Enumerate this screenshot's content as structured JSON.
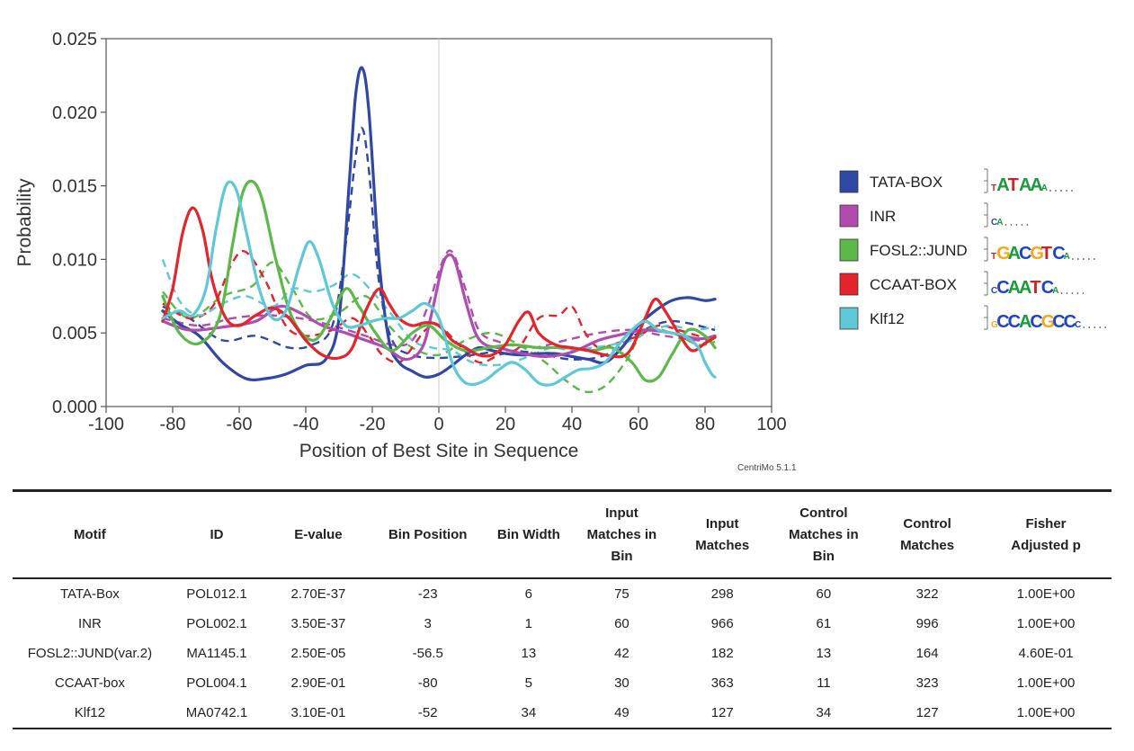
{
  "chart_data": {
    "type": "line",
    "xlabel": "Position of Best Site in Sequence",
    "ylabel": "Probability",
    "xlim": [
      -100,
      100
    ],
    "ylim": [
      0,
      0.025
    ],
    "xticks": [
      "-100",
      "-80",
      "-60",
      "-40",
      "-20",
      "0",
      "20",
      "40",
      "60",
      "80",
      "100"
    ],
    "yticks": [
      "0.000",
      "0.005",
      "0.010",
      "0.015",
      "0.020",
      "0.025"
    ],
    "grid": false,
    "legend": "right",
    "version_label": "CentriMo 5.1.1",
    "series": [
      {
        "name": "TATA-BOX",
        "color": "#2f48a3",
        "logo": "TATAAA",
        "x": [
          -83,
          -78,
          -72,
          -65,
          -58,
          -52,
          -46,
          -40,
          -34,
          -30,
          -27,
          -25,
          -23,
          -21,
          -18,
          -15,
          -12,
          -8,
          -4,
          0,
          4,
          8,
          12,
          16,
          20,
          25,
          30,
          35,
          40,
          45,
          50,
          55,
          60,
          65,
          70,
          75,
          80,
          83
        ],
        "y": [
          0.0065,
          0.0056,
          0.0048,
          0.003,
          0.0019,
          0.0019,
          0.0022,
          0.0028,
          0.0032,
          0.006,
          0.015,
          0.0212,
          0.023,
          0.02,
          0.01,
          0.0045,
          0.003,
          0.0024,
          0.002,
          0.0022,
          0.0028,
          0.0035,
          0.004,
          0.0038,
          0.0036,
          0.0035,
          0.0036,
          0.0036,
          0.0034,
          0.0032,
          0.003,
          0.004,
          0.0055,
          0.0065,
          0.0072,
          0.0074,
          0.0072,
          0.0073
        ]
      },
      {
        "name": "TATA-BOX control",
        "color": "#2f48a3",
        "dashed": true,
        "x": [
          -83,
          -75,
          -65,
          -55,
          -45,
          -38,
          -32,
          -28,
          -25,
          -23,
          -21,
          -18,
          -14,
          -8,
          0,
          10,
          20,
          30,
          40,
          50,
          60,
          70,
          83
        ],
        "y": [
          0.0068,
          0.006,
          0.0045,
          0.0048,
          0.004,
          0.0042,
          0.0055,
          0.011,
          0.017,
          0.0189,
          0.016,
          0.0085,
          0.0045,
          0.0035,
          0.0033,
          0.0035,
          0.0038,
          0.0036,
          0.0032,
          0.0035,
          0.005,
          0.0058,
          0.0052
        ]
      },
      {
        "name": "INR",
        "color": "#b04cb0",
        "logo": "CA",
        "x": [
          -83,
          -75,
          -65,
          -55,
          -48,
          -42,
          -35,
          -28,
          -22,
          -16,
          -10,
          -5,
          -2,
          1,
          3,
          5,
          8,
          11,
          14,
          18,
          25,
          32,
          40,
          48,
          55,
          62,
          70,
          78,
          83
        ],
        "y": [
          0.0058,
          0.0052,
          0.0054,
          0.0058,
          0.0068,
          0.0064,
          0.0055,
          0.005,
          0.0045,
          0.004,
          0.0032,
          0.004,
          0.0065,
          0.0095,
          0.0103,
          0.0098,
          0.0072,
          0.005,
          0.0042,
          0.004,
          0.0036,
          0.0034,
          0.0037,
          0.0045,
          0.0049,
          0.0052,
          0.005,
          0.0046,
          0.0048
        ]
      },
      {
        "name": "INR control",
        "color": "#b04cb0",
        "dashed": true,
        "x": [
          -83,
          -72,
          -62,
          -52,
          -42,
          -32,
          -22,
          -14,
          -8,
          -3,
          1,
          4,
          8,
          12,
          18,
          28,
          38,
          48,
          58,
          68,
          78,
          83
        ],
        "y": [
          0.006,
          0.0055,
          0.006,
          0.0062,
          0.006,
          0.0055,
          0.0048,
          0.0042,
          0.0045,
          0.007,
          0.0098,
          0.0105,
          0.008,
          0.0052,
          0.0044,
          0.004,
          0.0045,
          0.005,
          0.0052,
          0.0048,
          0.0045,
          0.0046
        ]
      },
      {
        "name": "FOSL2::JUND",
        "color": "#5cb848",
        "logo": "TGACGTCA",
        "x": [
          -83,
          -78,
          -72,
          -66,
          -62,
          -59,
          -56,
          -53,
          -49,
          -44,
          -38,
          -33,
          -28,
          -24,
          -19,
          -14,
          -8,
          -3,
          2,
          8,
          15,
          22,
          30,
          38,
          46,
          52,
          58,
          62,
          66,
          70,
          75,
          80,
          83
        ],
        "y": [
          0.0075,
          0.005,
          0.0043,
          0.006,
          0.011,
          0.0145,
          0.0153,
          0.014,
          0.01,
          0.006,
          0.0045,
          0.0058,
          0.008,
          0.0068,
          0.005,
          0.0038,
          0.005,
          0.0055,
          0.0045,
          0.0038,
          0.004,
          0.0042,
          0.004,
          0.004,
          0.0038,
          0.004,
          0.003,
          0.0018,
          0.002,
          0.0035,
          0.0052,
          0.0048,
          0.004
        ]
      },
      {
        "name": "FOSL2::JUND control",
        "color": "#5cb848",
        "dashed": true,
        "x": [
          -83,
          -75,
          -65,
          -56,
          -50,
          -44,
          -38,
          -30,
          -22,
          -15,
          -8,
          0,
          8,
          16,
          24,
          32,
          38,
          44,
          50,
          56,
          62,
          70,
          78,
          83
        ],
        "y": [
          0.0078,
          0.006,
          0.0075,
          0.0082,
          0.0098,
          0.008,
          0.006,
          0.0064,
          0.0075,
          0.0055,
          0.004,
          0.0035,
          0.0045,
          0.005,
          0.0042,
          0.003,
          0.0018,
          0.001,
          0.0014,
          0.003,
          0.0052,
          0.005,
          0.0042,
          0.0044
        ]
      },
      {
        "name": "CCAAT-BOX",
        "color": "#e4232a",
        "logo": "CCAATCA",
        "x": [
          -83,
          -80,
          -77,
          -74,
          -71,
          -68,
          -64,
          -60,
          -55,
          -50,
          -45,
          -40,
          -35,
          -30,
          -26,
          -22,
          -18,
          -15,
          -12,
          -8,
          -4,
          0,
          4,
          8,
          12,
          16,
          20,
          24,
          27,
          30,
          35,
          40,
          45,
          50,
          55,
          58,
          62,
          65,
          68,
          72,
          76,
          80,
          83
        ],
        "y": [
          0.0058,
          0.008,
          0.0118,
          0.0135,
          0.012,
          0.0085,
          0.006,
          0.0055,
          0.0062,
          0.0067,
          0.006,
          0.0045,
          0.0035,
          0.0033,
          0.004,
          0.0065,
          0.008,
          0.007,
          0.006,
          0.0055,
          0.0057,
          0.0055,
          0.0045,
          0.004,
          0.0035,
          0.0035,
          0.0042,
          0.0058,
          0.0064,
          0.005,
          0.0042,
          0.004,
          0.0038,
          0.0035,
          0.0034,
          0.004,
          0.006,
          0.0073,
          0.0065,
          0.005,
          0.0038,
          0.0043,
          0.0047
        ]
      },
      {
        "name": "CCAAT-BOX control",
        "color": "#e4232a",
        "dashed": true,
        "x": [
          -83,
          -75,
          -68,
          -62,
          -58,
          -52,
          -46,
          -40,
          -32,
          -26,
          -21,
          -17,
          -12,
          -8,
          -4,
          0,
          6,
          12,
          18,
          24,
          30,
          36,
          40,
          44,
          48,
          52,
          56,
          60,
          66,
          72,
          78,
          83
        ],
        "y": [
          0.007,
          0.006,
          0.0068,
          0.0098,
          0.0105,
          0.0085,
          0.0055,
          0.0048,
          0.0052,
          0.006,
          0.0048,
          0.0035,
          0.003,
          0.004,
          0.0052,
          0.0055,
          0.0042,
          0.003,
          0.0035,
          0.004,
          0.006,
          0.0062,
          0.0068,
          0.005,
          0.004,
          0.0042,
          0.0045,
          0.0048,
          0.0055,
          0.0052,
          0.0048,
          0.0046
        ]
      },
      {
        "name": "Klf12",
        "color": "#5ec8d8",
        "logo": "GCCACGCCC",
        "x": [
          -83,
          -78,
          -74,
          -70,
          -67,
          -64,
          -61,
          -58,
          -54,
          -50,
          -46,
          -42,
          -39,
          -36,
          -32,
          -28,
          -24,
          -20,
          -16,
          -12,
          -8,
          -4,
          0,
          4,
          7,
          10,
          14,
          18,
          22,
          26,
          30,
          34,
          38,
          42,
          46,
          50,
          54,
          58,
          62,
          66,
          70,
          74,
          78,
          80,
          82,
          83
        ],
        "y": [
          0.006,
          0.0065,
          0.0062,
          0.008,
          0.012,
          0.015,
          0.0148,
          0.012,
          0.008,
          0.006,
          0.0065,
          0.0095,
          0.0112,
          0.01,
          0.007,
          0.0055,
          0.0055,
          0.0058,
          0.006,
          0.006,
          0.0065,
          0.007,
          0.006,
          0.003,
          0.0018,
          0.0015,
          0.0018,
          0.0025,
          0.003,
          0.0025,
          0.0016,
          0.0015,
          0.002,
          0.0025,
          0.0026,
          0.003,
          0.0042,
          0.0052,
          0.0058,
          0.0052,
          0.005,
          0.0048,
          0.004,
          0.003,
          0.0022,
          0.002
        ]
      },
      {
        "name": "Klf12 control",
        "color": "#5ec8d8",
        "dashed": true,
        "x": [
          -83,
          -78,
          -72,
          -65,
          -58,
          -50,
          -44,
          -38,
          -32,
          -26,
          -20,
          -14,
          -8,
          -2,
          4,
          10,
          16,
          22,
          28,
          34,
          40,
          46,
          52,
          58,
          64,
          70,
          76,
          83
        ],
        "y": [
          0.01,
          0.0072,
          0.0062,
          0.007,
          0.0075,
          0.0068,
          0.008,
          0.0078,
          0.0082,
          0.009,
          0.0078,
          0.0062,
          0.0045,
          0.004,
          0.0038,
          0.003,
          0.0028,
          0.003,
          0.0035,
          0.004,
          0.0038,
          0.004,
          0.0042,
          0.0045,
          0.0052,
          0.0055,
          0.0052,
          0.0054
        ]
      }
    ]
  },
  "table": {
    "headers": [
      "Motif",
      "ID",
      "E-value",
      "Bin Position",
      "Bin Width",
      [
        "Input",
        "Matches in",
        "Bin"
      ],
      [
        "Input",
        "Matches"
      ],
      [
        "Control",
        "Matches in",
        "Bin"
      ],
      [
        "Control",
        "Matches"
      ],
      [
        "Fisher",
        "Adjusted p"
      ]
    ],
    "rows": [
      [
        "TATA-Box",
        "POL012.1",
        "2.70E-37",
        "-23",
        "6",
        "75",
        "298",
        "60",
        "322",
        "1.00E+00"
      ],
      [
        "INR",
        "POL002.1",
        "3.50E-37",
        "3",
        "1",
        "60",
        "966",
        "61",
        "996",
        "1.00E+00"
      ],
      [
        "FOSL2::JUND(var.2)",
        "MA1145.1",
        "2.50E-05",
        "-56.5",
        "13",
        "42",
        "182",
        "13",
        "164",
        "4.60E-01"
      ],
      [
        "CCAAT-box",
        "POL004.1",
        "2.90E-01",
        "-80",
        "5",
        "30",
        "363",
        "11",
        "323",
        "1.00E+00"
      ],
      [
        "Klf12",
        "MA0742.1",
        "3.10E-01",
        "-52",
        "34",
        "49",
        "127",
        "34",
        "127",
        "1.00E+00"
      ]
    ]
  }
}
